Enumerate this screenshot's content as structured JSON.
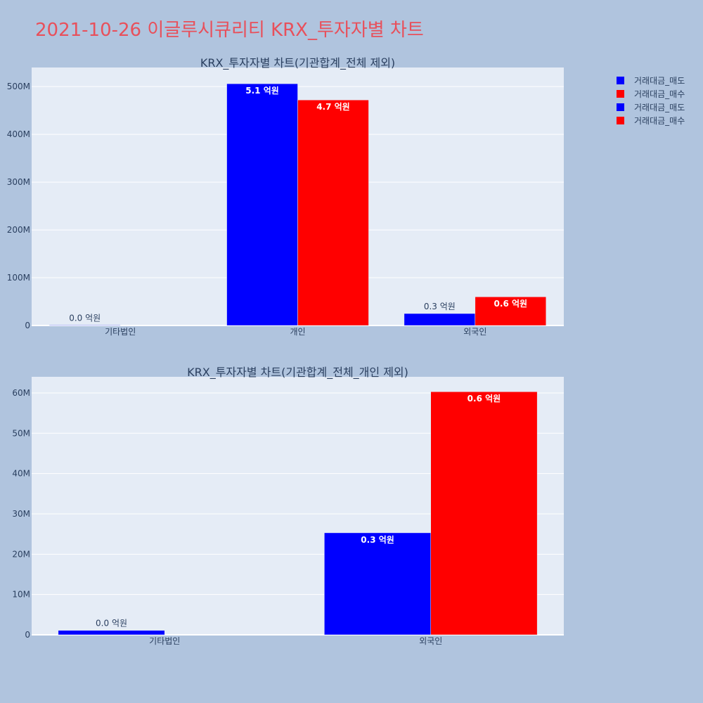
{
  "page": {
    "title": "2021-10-26 이글루시큐리티 KRX_투자자별 차트"
  },
  "colors": {
    "sell": "#0000ff",
    "buy": "#ff0000",
    "title": "#e8505b",
    "text": "#2a3f5f"
  },
  "legend": {
    "placement": "top-right",
    "items": [
      {
        "label": "거래대금_매도",
        "color": "#0000ff"
      },
      {
        "label": "거래대금_매수",
        "color": "#ff0000"
      },
      {
        "label": "거래대금_매도",
        "color": "#0000ff"
      },
      {
        "label": "거래대금_매수",
        "color": "#ff0000"
      }
    ]
  },
  "chart_data": [
    {
      "type": "bar",
      "title": "KRX_투자자별 차트(기관합계_전체 제외)",
      "categories": [
        "기타법인",
        "개인",
        "외국인"
      ],
      "ylim": [
        0,
        540000000
      ],
      "yticks": [
        0,
        100000000,
        200000000,
        300000000,
        400000000,
        500000000
      ],
      "ytick_labels": [
        "0",
        "100M",
        "200M",
        "300M",
        "400M",
        "500M"
      ],
      "grid": true,
      "series": [
        {
          "name": "거래대금_매도",
          "color": "#0000ff",
          "values": [
            1000000,
            506000000,
            25000000
          ],
          "labels": [
            "0.0 억원",
            "5.1 억원",
            "0.3 억원"
          ]
        },
        {
          "name": "거래대금_매수",
          "color": "#ff0000",
          "values": [
            0,
            472000000,
            60000000
          ],
          "labels": [
            "",
            "4.7 억원",
            "0.6 억원"
          ]
        }
      ]
    },
    {
      "type": "bar",
      "title": "KRX_투자자별 차트(기관합계_전체_개인 제외)",
      "categories": [
        "기타법인",
        "외국인"
      ],
      "ylim": [
        0,
        64000000
      ],
      "yticks": [
        0,
        10000000,
        20000000,
        30000000,
        40000000,
        50000000,
        60000000
      ],
      "ytick_labels": [
        "0",
        "10M",
        "20M",
        "30M",
        "40M",
        "50M",
        "60M"
      ],
      "grid": true,
      "series": [
        {
          "name": "거래대금_매도",
          "color": "#0000ff",
          "values": [
            1100000,
            25300000
          ],
          "labels": [
            "0.0 억원",
            "0.3 억원"
          ]
        },
        {
          "name": "거래대금_매수",
          "color": "#ff0000",
          "values": [
            0,
            60300000
          ],
          "labels": [
            "",
            "0.6 억원"
          ]
        }
      ]
    }
  ]
}
